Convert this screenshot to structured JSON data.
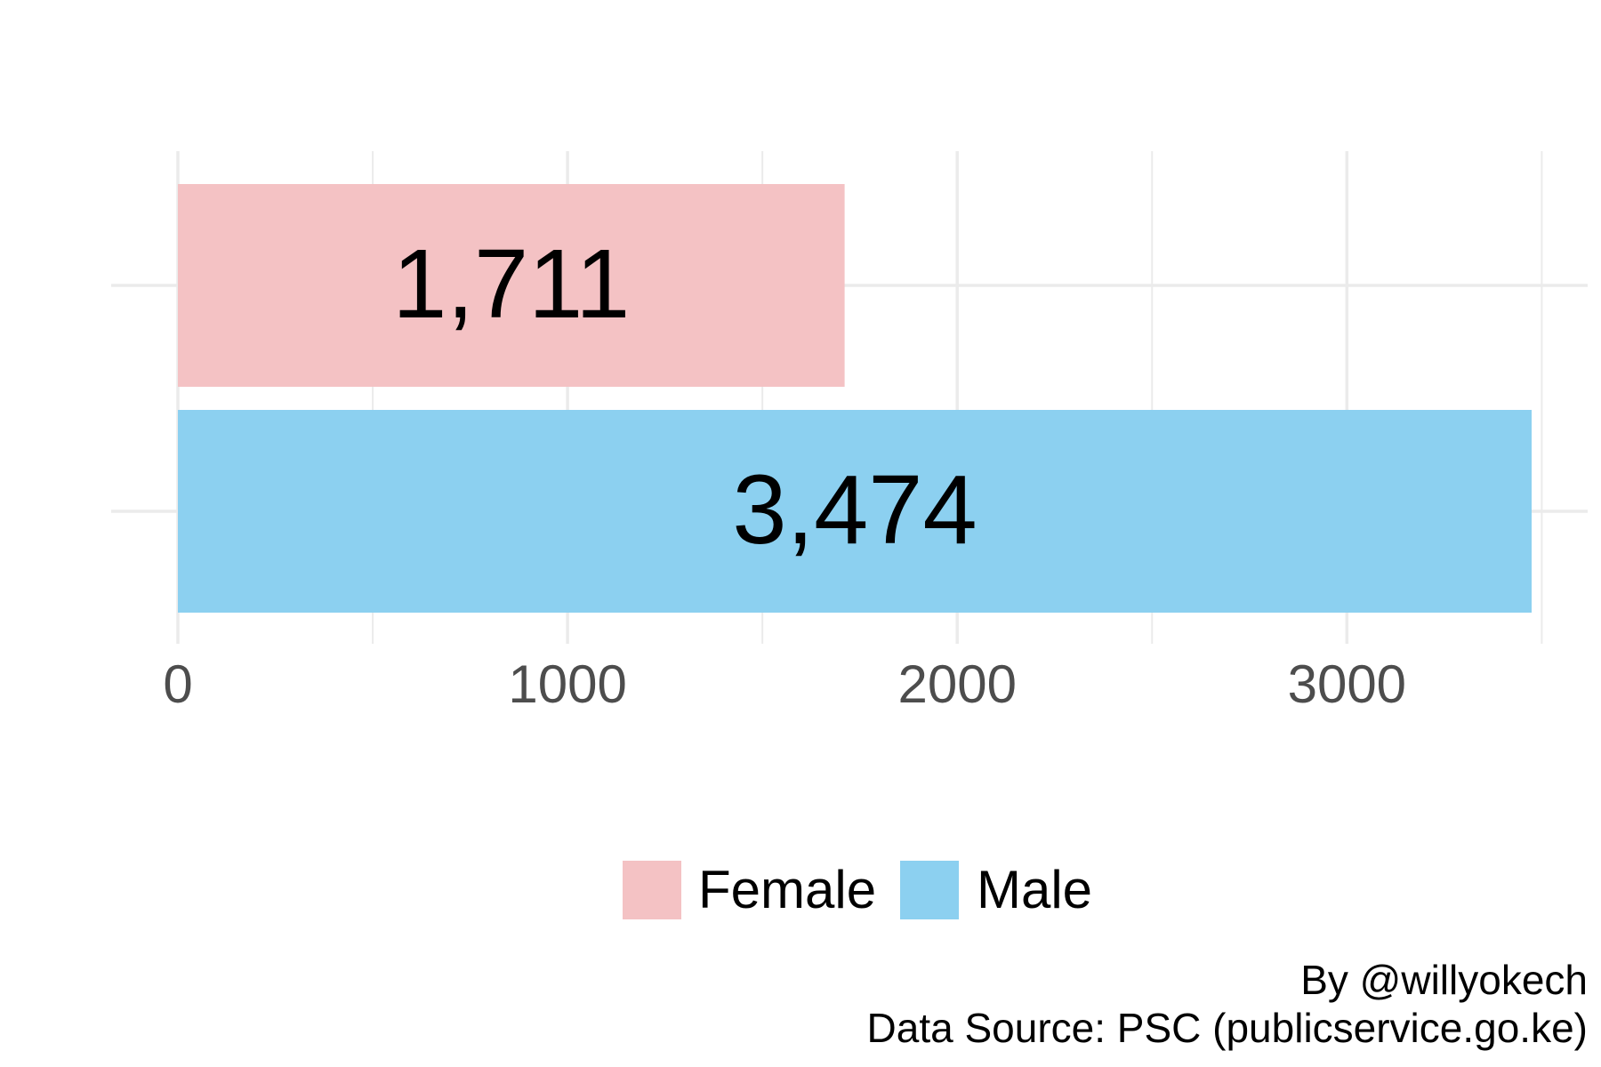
{
  "chart_data": {
    "type": "bar",
    "orientation": "horizontal",
    "categories": [
      "Female",
      "Male"
    ],
    "values": [
      1711,
      3474
    ],
    "value_labels": [
      "1,711",
      "3,474"
    ],
    "colors": [
      "#F4C2C4",
      "#8CD0F0"
    ],
    "xlim": [
      0,
      3500
    ],
    "x_ticks": [
      0,
      1000,
      2000,
      3000
    ],
    "x_tick_labels": [
      "0",
      "1000",
      "2000",
      "3000"
    ],
    "grid": true,
    "legend": {
      "placement": "bottom",
      "entries": [
        "Female",
        "Male"
      ]
    },
    "title": "",
    "xlabel": "",
    "ylabel": ""
  },
  "caption": {
    "line1": "By @willyokech",
    "line2": "Data Source: PSC (publicservice.go.ke)"
  }
}
